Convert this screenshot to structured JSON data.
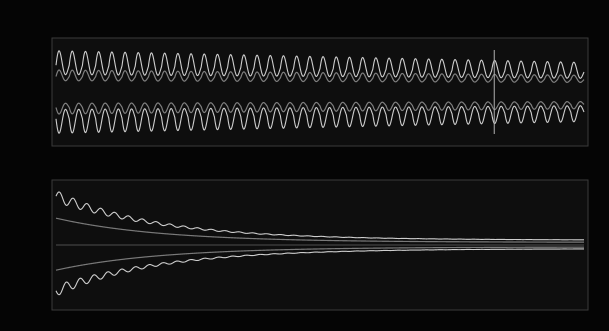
{
  "figure": {
    "title": ""
  },
  "colors": {
    "background": "#050505",
    "plot_background": "#0e0e0e",
    "axis": "#3a3a3a",
    "trace_light": "#d9d9d9",
    "trace_dark": "#8c8c8c",
    "marker": "#b0b0b0"
  },
  "chart_data": [
    {
      "type": "line",
      "title": "",
      "xlabel": "",
      "ylabel": "",
      "xlim": [
        0,
        100
      ],
      "ylim": [
        -1,
        1
      ],
      "grid": false,
      "legend": "none",
      "description_of_series": [
        "upper-oscillation",
        "lower-oscillation"
      ],
      "series": [
        {
          "role": "upper",
          "envelope_start": 0.72,
          "envelope_end": 0.48,
          "cycles": 40
        },
        {
          "role": "lower",
          "envelope_start": 0.72,
          "envelope_end": 0.48,
          "cycles": 40
        }
      ],
      "markers_x": [
        83
      ]
    },
    {
      "type": "line",
      "title": "",
      "xlabel": "",
      "ylabel": "",
      "xlim": [
        0,
        100
      ],
      "ylim": [
        -1,
        1
      ],
      "grid": false,
      "legend": "none",
      "series": [
        {
          "role": "upper-envelope",
          "start": 0.8,
          "end": 0.08,
          "decay": 0.05
        },
        {
          "role": "lower-envelope",
          "start": -0.75,
          "end": -0.06,
          "decay": 0.05
        }
      ]
    }
  ]
}
